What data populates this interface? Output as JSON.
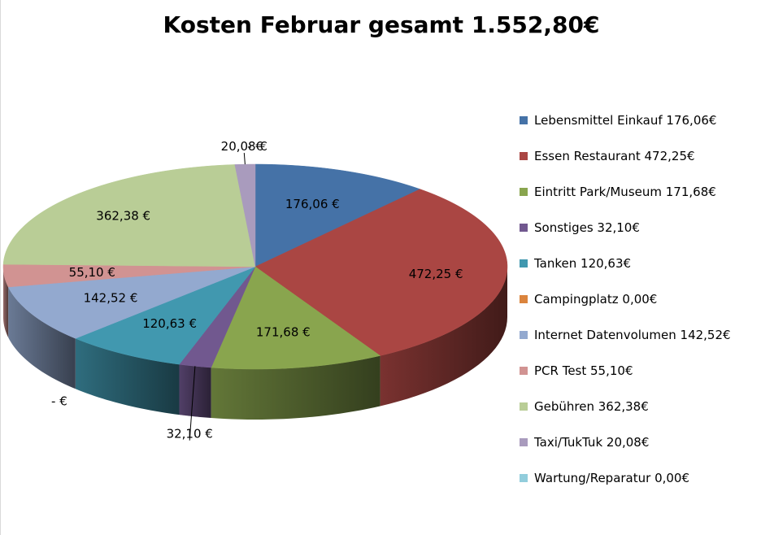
{
  "chart_data": {
    "type": "pie",
    "title": "Kosten Februar gesamt 1.552,80€",
    "slices": [
      {
        "name": "Lebensmittel Einkauf",
        "value": 176.06,
        "color": "#4572A7",
        "label": "176,06 €",
        "legend": "Lebensmittel Einkauf 176,06€"
      },
      {
        "name": "Essen Restaurant",
        "value": 472.25,
        "color": "#AA4643",
        "label": "472,25 €",
        "legend": "Essen Restaurant 472,25€"
      },
      {
        "name": "Eintritt Park/Museum",
        "value": 171.68,
        "color": "#89A54E",
        "label": "171,68 €",
        "legend": "Eintritt Park/Museum 171,68€"
      },
      {
        "name": "Sonstiges",
        "value": 32.1,
        "color": "#71588F",
        "label": "32,10 €",
        "legend": "Sonstiges 32,10€"
      },
      {
        "name": "Tanken",
        "value": 120.63,
        "color": "#4198AF",
        "label": "120,63 €",
        "legend": "Tanken 120,63€"
      },
      {
        "name": "Campingplatz",
        "value": 0.0,
        "color": "#DB843D",
        "label": "-   €",
        "legend": "Campingplatz 0,00€"
      },
      {
        "name": "Internet Datenvolumen",
        "value": 142.52,
        "color": "#93A9CF",
        "label": "142,52 €",
        "legend": "Internet Datenvolumen 142,52€"
      },
      {
        "name": "PCR Test",
        "value": 55.1,
        "color": "#D19392",
        "label": "55,10 €",
        "legend": "PCR Test 55,10€"
      },
      {
        "name": "Gebühren",
        "value": 362.38,
        "color": "#B9CD96",
        "label": "362,38 €",
        "legend": "Gebühren 362,38€"
      },
      {
        "name": "Taxi/TukTuk",
        "value": 20.08,
        "color": "#A99BBD",
        "label": "20,08 €",
        "legend": "Taxi/TukTuk 20,08€"
      },
      {
        "name": "Wartung/Reparatur",
        "value": 0.0,
        "color": "#92CDDC",
        "label": "-   €",
        "legend": "Wartung/Reparatur 0,00€"
      }
    ],
    "legend_position": "right"
  }
}
